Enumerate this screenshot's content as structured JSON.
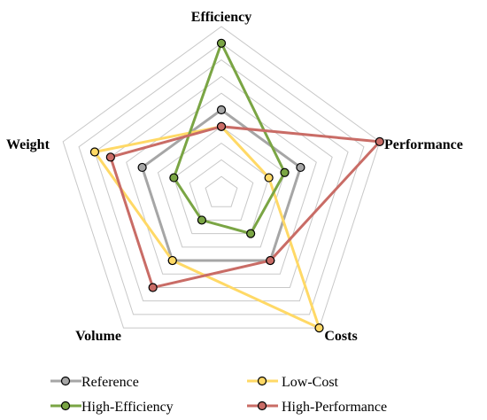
{
  "chart_data": {
    "type": "radar",
    "axes": [
      "Efficiency",
      "Performance",
      "Costs",
      "Volume",
      "Weight"
    ],
    "rings": 10,
    "range": [
      0,
      10
    ],
    "grid": true,
    "legend_position": "bottom",
    "series": [
      {
        "name": "Reference",
        "color": "#a6a6a6",
        "values": [
          5,
          5,
          5,
          5,
          5
        ]
      },
      {
        "name": "Low-Cost",
        "color": "#ffd966",
        "values": [
          4,
          3,
          10,
          5,
          8
        ]
      },
      {
        "name": "High-Efficiency",
        "color": "#7aa544",
        "values": [
          9,
          4,
          3,
          2,
          3
        ]
      },
      {
        "name": "High-Performance",
        "color": "#c96c66",
        "values": [
          4,
          10,
          5,
          7,
          7
        ]
      }
    ]
  }
}
